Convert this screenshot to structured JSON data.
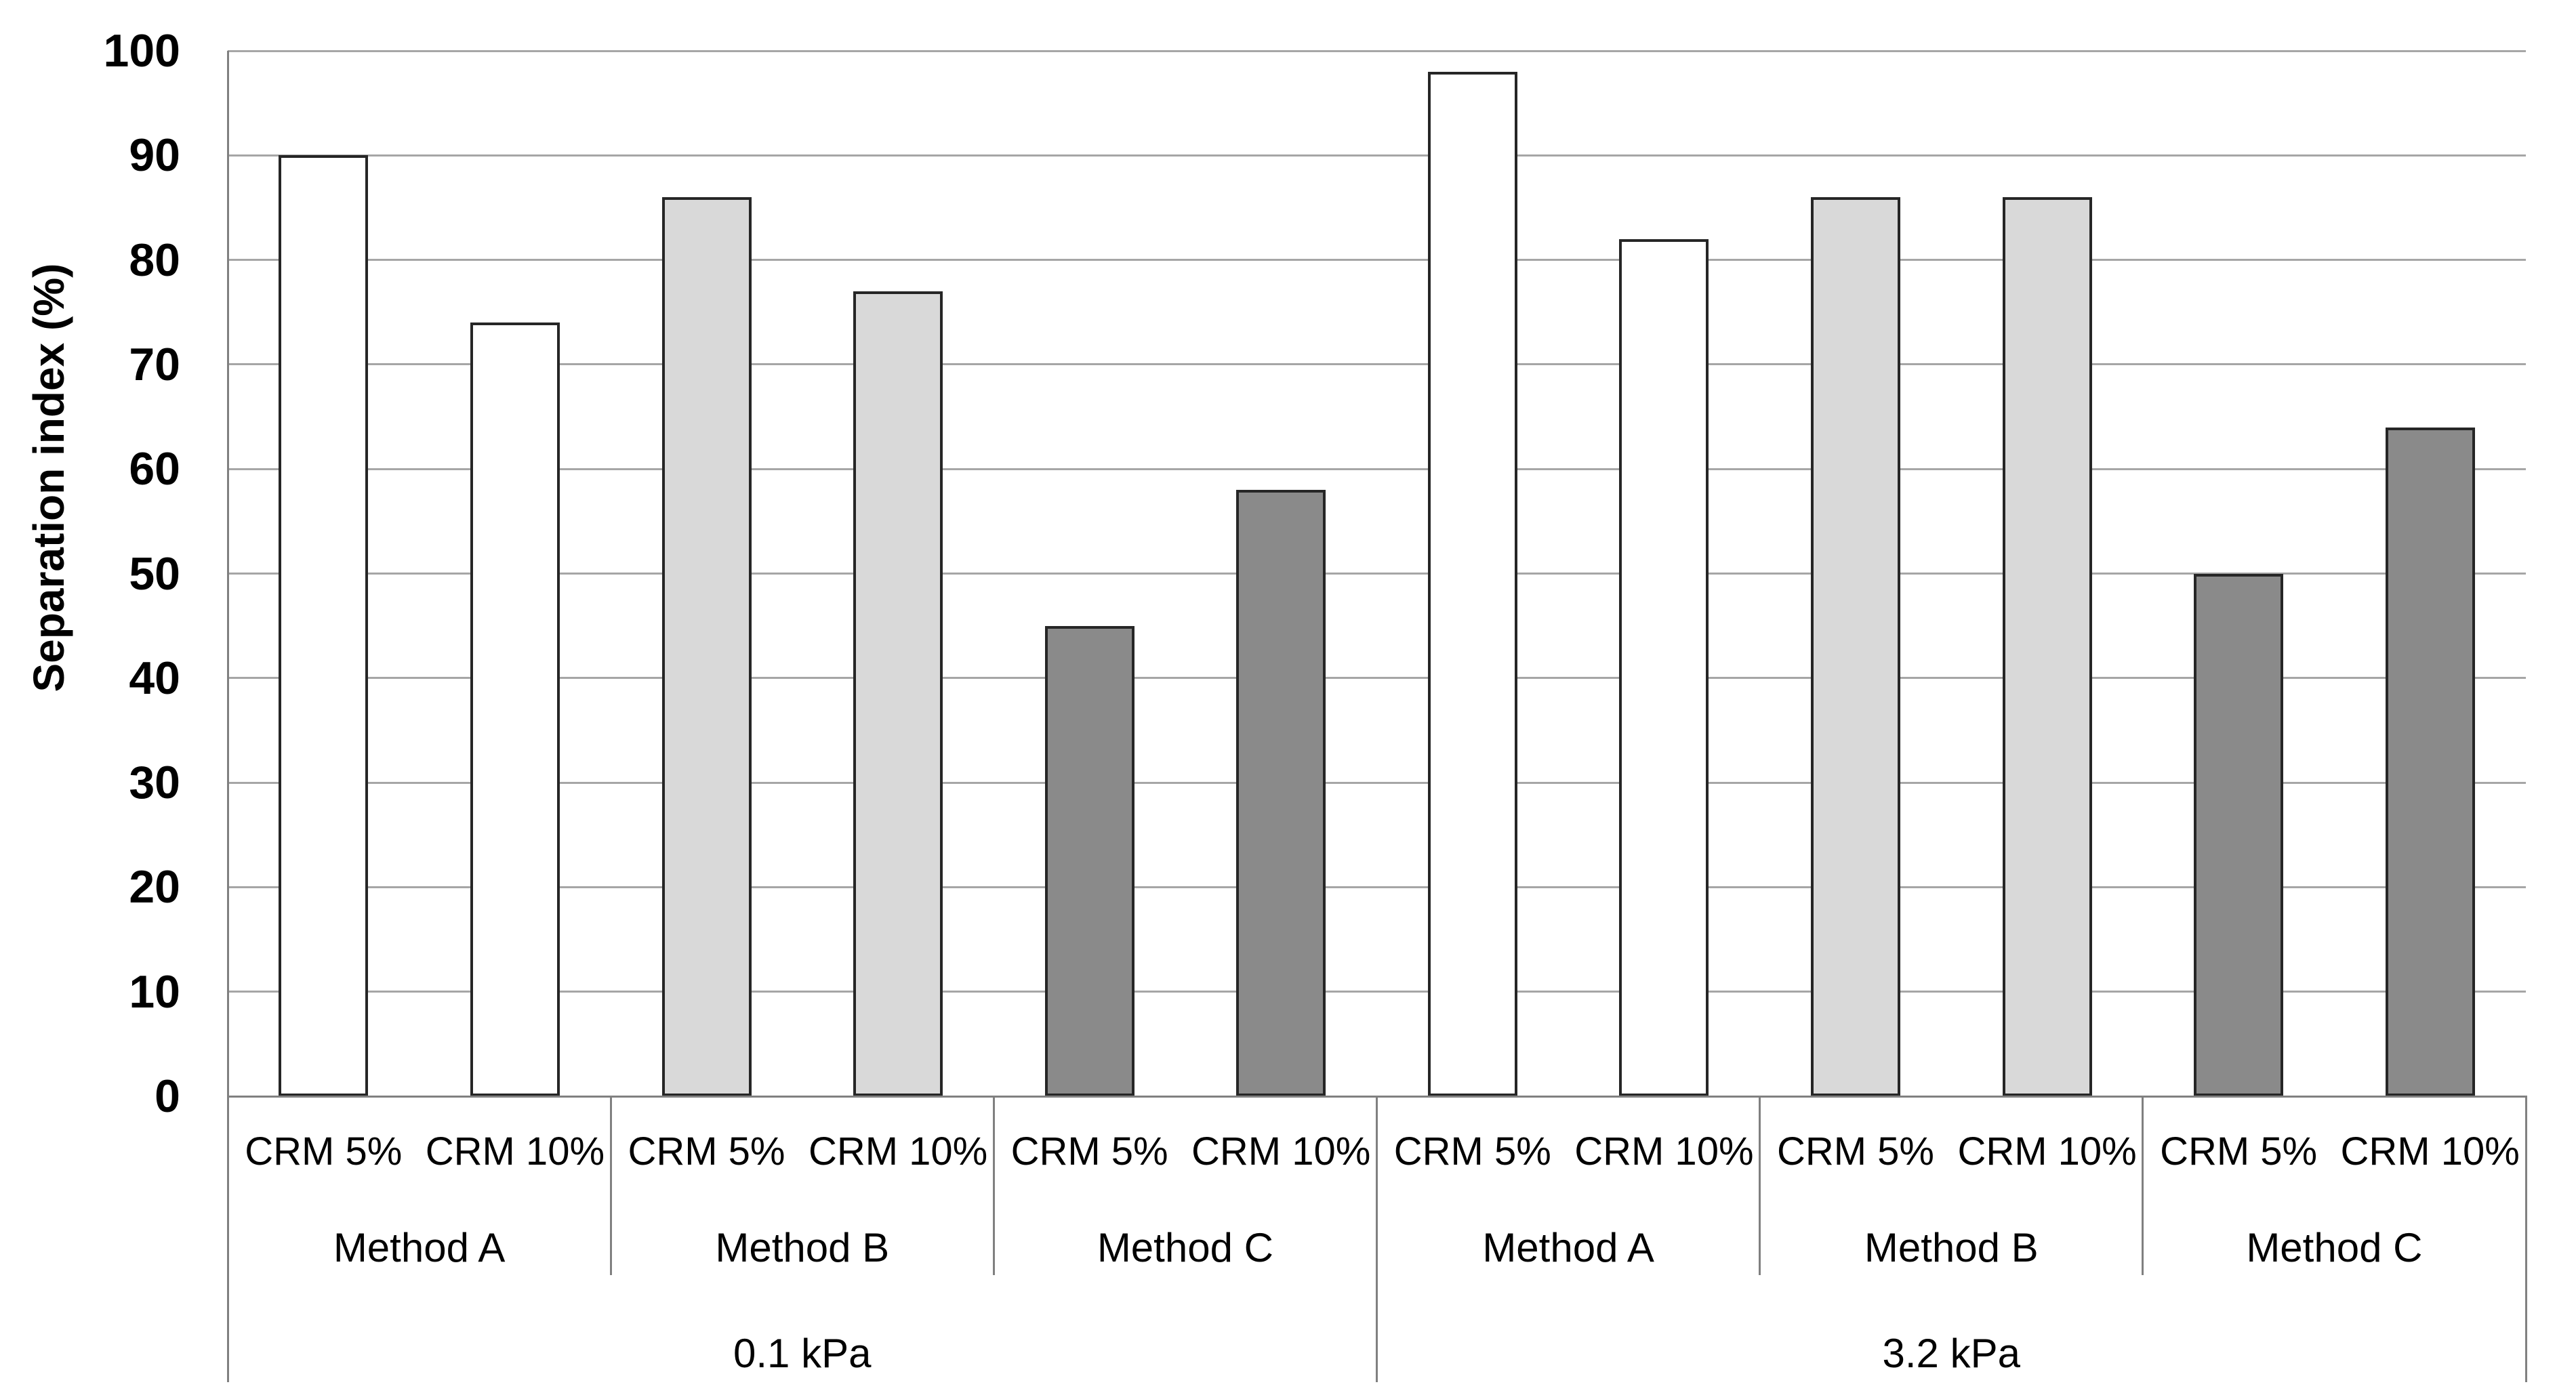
{
  "chart_data": {
    "type": "bar",
    "title": "",
    "ylabel": "Separation index (%)",
    "xlabel": "",
    "ylim": [
      0,
      100
    ],
    "yticks": [
      "0",
      "10",
      "20",
      "30",
      "40",
      "50",
      "60",
      "70",
      "80",
      "90",
      "100"
    ],
    "grid": true,
    "legend": false,
    "series_fills": {
      "Method A": "#ffffff",
      "Method B": "#d9d9d9",
      "Method C": "#8a8a8a"
    },
    "colors": {
      "gridline": "#a6a6a6",
      "axis_line": "#808080",
      "bar_border": "#262626",
      "text": "#000000"
    },
    "groups": [
      {
        "pressure": "0.1 kPa",
        "methods": [
          {
            "method": "Method A",
            "bars": [
              {
                "label": "CRM 5%",
                "value": 90
              },
              {
                "label": "CRM 10%",
                "value": 74
              }
            ]
          },
          {
            "method": "Method B",
            "bars": [
              {
                "label": "CRM 5%",
                "value": 86
              },
              {
                "label": "CRM 10%",
                "value": 77
              }
            ]
          },
          {
            "method": "Method C",
            "bars": [
              {
                "label": "CRM 5%",
                "value": 45
              },
              {
                "label": "CRM 10%",
                "value": 58
              }
            ]
          }
        ]
      },
      {
        "pressure": "3.2 kPa",
        "methods": [
          {
            "method": "Method A",
            "bars": [
              {
                "label": "CRM 5%",
                "value": 98
              },
              {
                "label": "CRM 10%",
                "value": 82
              }
            ]
          },
          {
            "method": "Method B",
            "bars": [
              {
                "label": "CRM 5%",
                "value": 86
              },
              {
                "label": "CRM 10%",
                "value": 86
              }
            ]
          },
          {
            "method": "Method C",
            "bars": [
              {
                "label": "CRM 5%",
                "value": 50
              },
              {
                "label": "CRM 10%",
                "value": 64
              }
            ]
          }
        ]
      }
    ]
  }
}
